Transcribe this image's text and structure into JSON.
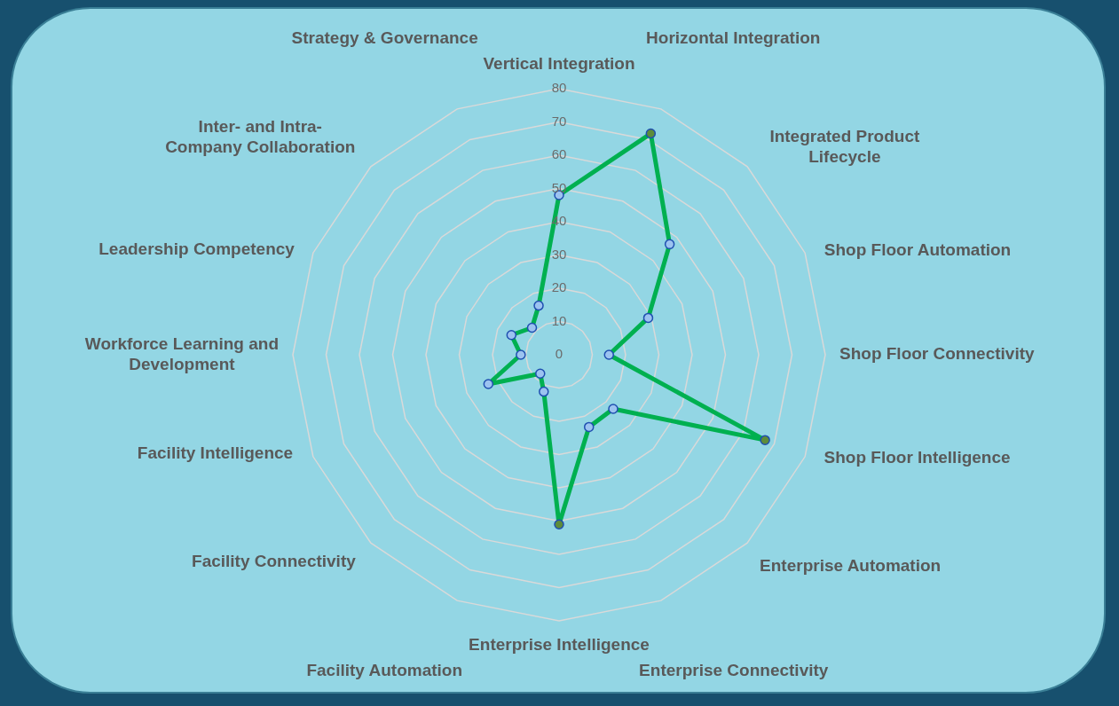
{
  "chart_data": {
    "type": "radar",
    "categories": [
      "Vertical Integration",
      "Horizontal Integration",
      "Integrated Product\nLifecycle",
      "Shop Floor Automation",
      "Shop Floor Connectivity",
      "Shop Floor Intelligence",
      "Enterprise Automation",
      "Enterprise Connectivity",
      "Enterprise Intelligence",
      "Facility Automation",
      "Facility Connectivity",
      "Facility Intelligence",
      "Workforce Learning and\nDevelopment",
      "Leadership Competency",
      "Inter- and Intra-\nCompany Collaboration",
      "Strategy & Governance"
    ],
    "series": [
      {
        "color": "#00b050",
        "colors": [
          "#9cc3f0",
          "#5e8c3a",
          "#9cc3f0",
          "#9cc3f0",
          "#9cc3f0",
          "#5e8c3a",
          "#9cc3f0",
          "#9cc3f0",
          "#5e8c3a",
          "#9cc3f0",
          "#9cc3f0",
          "#9cc3f0",
          "#9cc3f0",
          "#9cc3f0",
          "#9cc3f0",
          "#9cc3f0"
        ],
        "values": [
          48,
          72,
          47,
          29,
          15,
          67,
          23,
          23.5,
          51,
          12,
          8,
          23,
          11.5,
          15.5,
          11.5,
          16
        ]
      }
    ],
    "ylim": [
      0,
      80
    ],
    "yticks": [
      0,
      10,
      20,
      30,
      40,
      50,
      60,
      70,
      80
    ],
    "grid": true,
    "legend": false,
    "marker": "circle"
  }
}
